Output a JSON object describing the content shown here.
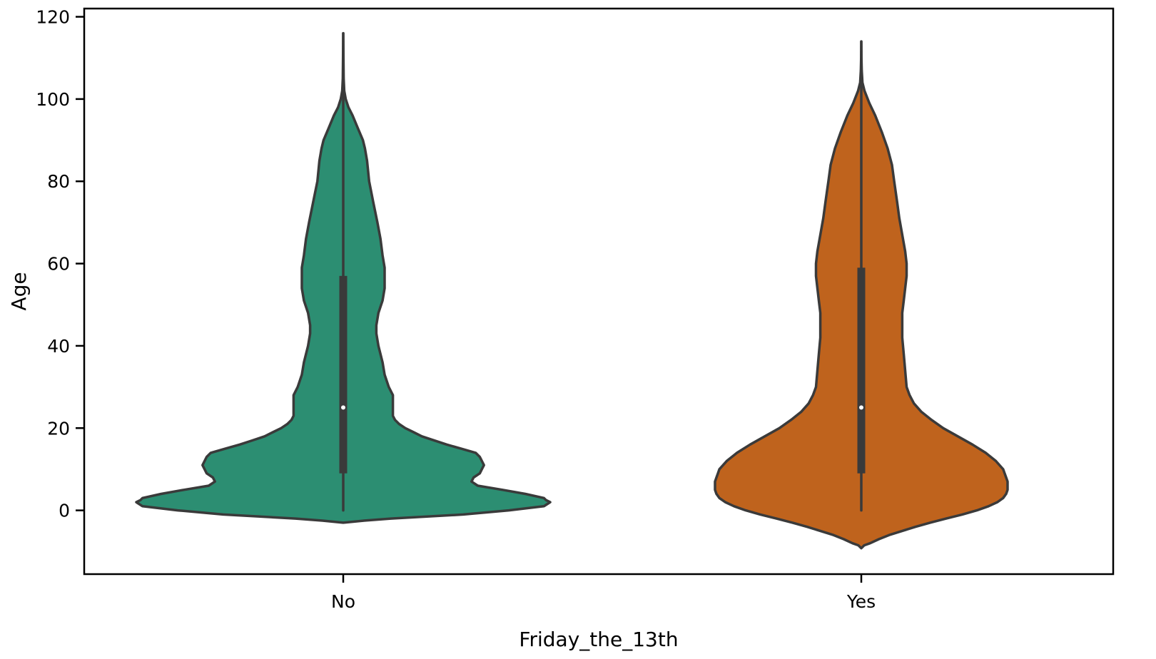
{
  "chart_data": {
    "type": "violin",
    "xlabel": "Friday_the_13th",
    "ylabel": "Age",
    "ylim": [
      -15.5,
      122
    ],
    "yticks": [
      0,
      20,
      40,
      60,
      80,
      100,
      120
    ],
    "grid": false,
    "categories": [
      "No",
      "Yes"
    ],
    "violins": [
      {
        "category": "No",
        "color": "#2c8e72",
        "min": 0,
        "q1": 9,
        "median": 25,
        "q3": 57,
        "max": 116,
        "density_profile": [
          [
            -3.0,
            0.0
          ],
          [
            -2.5,
            0.1
          ],
          [
            -2.0,
            0.23
          ],
          [
            -1.0,
            0.58
          ],
          [
            0.0,
            0.8
          ],
          [
            1.0,
            0.97
          ],
          [
            2.0,
            1.0
          ],
          [
            2.5,
            0.98
          ],
          [
            3.0,
            0.97
          ],
          [
            4.0,
            0.88
          ],
          [
            5.0,
            0.77
          ],
          [
            6.0,
            0.65
          ],
          [
            7.0,
            0.62
          ],
          [
            8.0,
            0.63
          ],
          [
            9.0,
            0.66
          ],
          [
            10.0,
            0.67
          ],
          [
            11.0,
            0.68
          ],
          [
            12.0,
            0.67
          ],
          [
            13.0,
            0.66
          ],
          [
            14.0,
            0.64
          ],
          [
            15.0,
            0.57
          ],
          [
            16.0,
            0.5
          ],
          [
            17.0,
            0.44
          ],
          [
            18.0,
            0.38
          ],
          [
            19.0,
            0.34
          ],
          [
            20.0,
            0.3
          ],
          [
            21.0,
            0.27
          ],
          [
            22.0,
            0.25
          ],
          [
            23.0,
            0.24
          ],
          [
            24.0,
            0.24
          ],
          [
            26.0,
            0.24
          ],
          [
            28.0,
            0.24
          ],
          [
            30.0,
            0.22
          ],
          [
            33.0,
            0.2
          ],
          [
            36.0,
            0.19
          ],
          [
            40.0,
            0.17
          ],
          [
            43.0,
            0.16
          ],
          [
            45.0,
            0.16
          ],
          [
            48.0,
            0.17
          ],
          [
            51.0,
            0.19
          ],
          [
            54.0,
            0.2
          ],
          [
            56.0,
            0.2
          ],
          [
            59.0,
            0.2
          ],
          [
            62.0,
            0.19
          ],
          [
            66.0,
            0.18
          ],
          [
            70.0,
            0.165
          ],
          [
            75.0,
            0.145
          ],
          [
            80.0,
            0.125
          ],
          [
            85.0,
            0.115
          ],
          [
            88.0,
            0.105
          ],
          [
            90.0,
            0.095
          ],
          [
            93.0,
            0.07
          ],
          [
            96.0,
            0.045
          ],
          [
            98.0,
            0.025
          ],
          [
            100.0,
            0.012
          ],
          [
            102.0,
            0.005
          ],
          [
            105.0,
            0.002
          ],
          [
            110.0,
            0.001
          ],
          [
            116.0,
            0.0
          ]
        ]
      },
      {
        "category": "Yes",
        "color": "#bf631d",
        "min": 0,
        "q1": 9,
        "median": 25,
        "q3": 59,
        "max": 114,
        "density_profile": [
          [
            -9.2,
            0.0
          ],
          [
            -8.5,
            0.02
          ],
          [
            -8.0,
            0.06
          ],
          [
            -7.0,
            0.12
          ],
          [
            -6.0,
            0.19
          ],
          [
            -5.0,
            0.28
          ],
          [
            -4.0,
            0.37
          ],
          [
            -3.0,
            0.47
          ],
          [
            -2.0,
            0.58
          ],
          [
            -1.0,
            0.69
          ],
          [
            0.0,
            0.79
          ],
          [
            1.0,
            0.87
          ],
          [
            2.0,
            0.93
          ],
          [
            3.0,
            0.97
          ],
          [
            4.0,
            0.99
          ],
          [
            5.0,
            1.0
          ],
          [
            6.0,
            1.0
          ],
          [
            7.0,
            1.0
          ],
          [
            8.0,
            0.99
          ],
          [
            9.0,
            0.98
          ],
          [
            10.0,
            0.97
          ],
          [
            12.0,
            0.92
          ],
          [
            14.0,
            0.85
          ],
          [
            16.0,
            0.76
          ],
          [
            18.0,
            0.66
          ],
          [
            20.0,
            0.56
          ],
          [
            22.0,
            0.48
          ],
          [
            24.0,
            0.41
          ],
          [
            26.0,
            0.36
          ],
          [
            28.0,
            0.33
          ],
          [
            30.0,
            0.31
          ],
          [
            34.0,
            0.3
          ],
          [
            38.0,
            0.29
          ],
          [
            42.0,
            0.28
          ],
          [
            45.0,
            0.28
          ],
          [
            48.0,
            0.28
          ],
          [
            51.0,
            0.29
          ],
          [
            54.0,
            0.3
          ],
          [
            57.0,
            0.31
          ],
          [
            60.0,
            0.31
          ],
          [
            63.0,
            0.3
          ],
          [
            67.0,
            0.28
          ],
          [
            71.0,
            0.26
          ],
          [
            75.0,
            0.245
          ],
          [
            80.0,
            0.225
          ],
          [
            84.0,
            0.21
          ],
          [
            88.0,
            0.18
          ],
          [
            92.0,
            0.14
          ],
          [
            96.0,
            0.095
          ],
          [
            99.0,
            0.055
          ],
          [
            102.0,
            0.022
          ],
          [
            104.0,
            0.008
          ],
          [
            107.0,
            0.003
          ],
          [
            110.0,
            0.001
          ],
          [
            114.0,
            0.0
          ]
        ]
      }
    ]
  }
}
